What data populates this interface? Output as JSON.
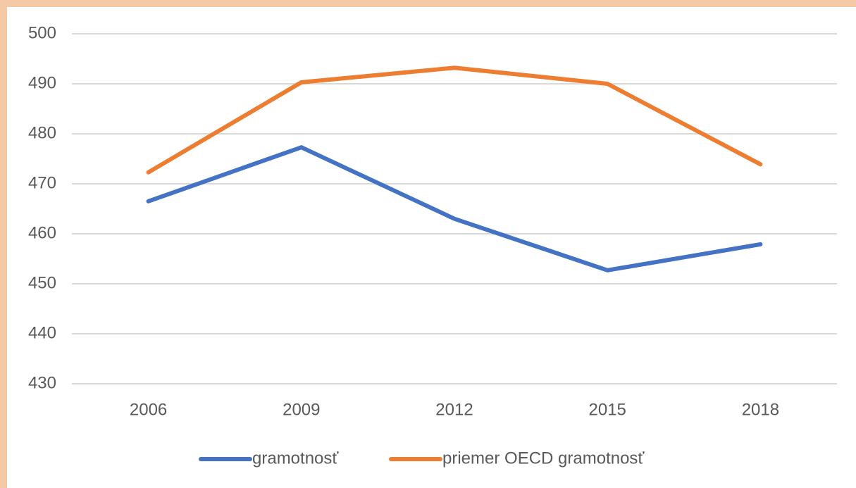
{
  "chart_data": {
    "type": "line",
    "categories": [
      "2006",
      "2009",
      "2012",
      "2015",
      "2018"
    ],
    "series": [
      {
        "name": "gramotnosť",
        "color": "#4472c4",
        "values": [
          466.5,
          477.3,
          463,
          452.7,
          457.9
        ]
      },
      {
        "name": "priemer OECD gramotnosť",
        "color": "#ed7d31",
        "values": [
          472.3,
          490.3,
          493.2,
          490,
          473.9
        ]
      }
    ],
    "ylim": [
      430,
      500
    ],
    "yticks": [
      430,
      440,
      450,
      460,
      470,
      480,
      490,
      500
    ],
    "grid": true,
    "legend": "bottom"
  }
}
